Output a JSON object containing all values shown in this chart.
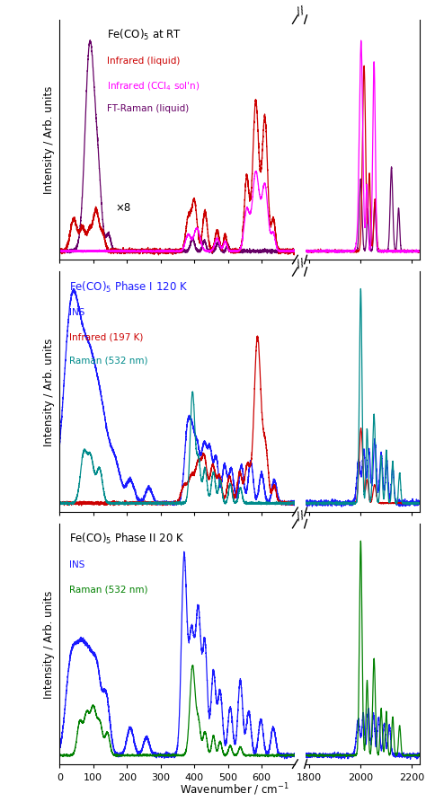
{
  "title1": "Fe(CO)$_5$ at RT",
  "title2": "Fe(CO)$_5$ Phase I 120 K",
  "title3": "Fe(CO)$_5$ Phase II 20 K",
  "xlabel": "Wavenumber / cm$^{-1}$",
  "ylabel": "Intensity / Arb. units",
  "title1_color": "black",
  "title2_color": "#1a1aff",
  "title3_color": "black",
  "p1_ir_color": "#CC0000",
  "p1_ccl4_color": "#FF00FF",
  "p1_raman_color": "#660066",
  "p2_ins_color": "#1a1aff",
  "p2_ir_color": "#CC0000",
  "p2_raman_color": "#008B8B",
  "p3_ins_color": "#1a1aff",
  "p3_raman_color": "#008000",
  "p1_label0": "Infrared (liquid)",
  "p1_label1": "Infrared (CCl$_4$ sol'n)",
  "p1_label2": "FT-Raman (liquid)",
  "p2_label0": "INS",
  "p2_label1": "Infrared (197 K)",
  "p2_label2": "Raman (532 nm)",
  "p3_label0": "INS",
  "p3_label1": "Raman (532 nm)",
  "x8_text": "×8"
}
